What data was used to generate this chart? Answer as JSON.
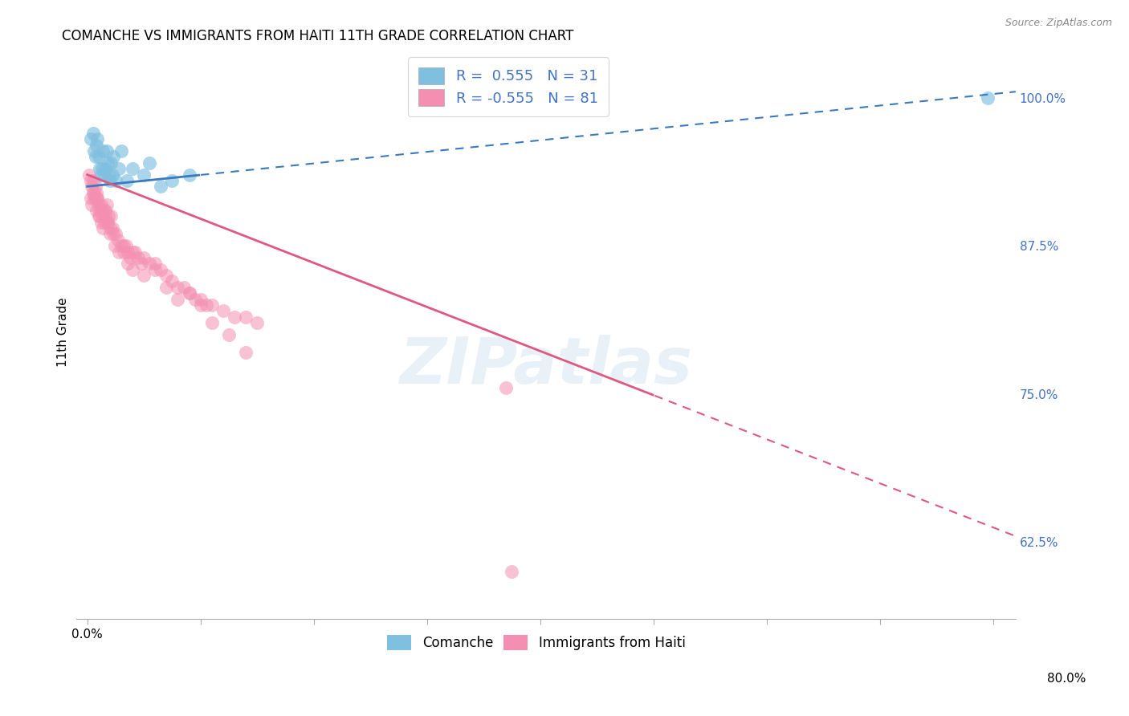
{
  "title": "COMANCHE VS IMMIGRANTS FROM HAITI 11TH GRADE CORRELATION CHART",
  "source_text": "Source: ZipAtlas.com",
  "ylabel": "11th Grade",
  "right_ytick_vals": [
    62.5,
    75.0,
    87.5,
    100.0
  ],
  "right_yticklabels": [
    "62.5%",
    "75.0%",
    "87.5%",
    "100.0%"
  ],
  "watermark": "ZIPatlas",
  "legend_line1": "R =  0.555   N = 31",
  "legend_line2": "R = -0.555   N = 81",
  "legend_labels_bottom": [
    "Comanche",
    "Immigrants from Haiti"
  ],
  "comanche_color": "#7fbfdf",
  "haiti_color": "#f48fb1",
  "comanche_line_color": "#3a7abf",
  "haiti_line_color": "#e05880",
  "comanche_x": [
    0.3,
    0.5,
    0.6,
    0.7,
    0.8,
    0.9,
    1.0,
    1.1,
    1.2,
    1.3,
    1.4,
    1.5,
    1.6,
    1.7,
    1.8,
    1.9,
    2.0,
    2.1,
    2.2,
    2.3,
    2.5,
    2.8,
    3.0,
    3.5,
    4.0,
    5.0,
    5.5,
    6.5,
    7.5,
    9.0,
    79.5
  ],
  "comanche_y": [
    96.5,
    97.0,
    95.5,
    95.0,
    96.0,
    96.5,
    95.0,
    94.0,
    93.5,
    94.0,
    95.5,
    93.5,
    94.0,
    95.5,
    94.5,
    93.5,
    93.0,
    94.5,
    93.5,
    95.0,
    93.0,
    94.0,
    95.5,
    93.0,
    94.0,
    93.5,
    94.5,
    92.5,
    93.0,
    93.5,
    100.0
  ],
  "haiti_x": [
    0.2,
    0.3,
    0.4,
    0.5,
    0.6,
    0.7,
    0.8,
    0.9,
    1.0,
    1.1,
    1.2,
    1.3,
    1.4,
    1.5,
    1.6,
    1.7,
    1.8,
    1.9,
    2.0,
    2.1,
    2.2,
    2.3,
    2.5,
    2.7,
    3.0,
    3.2,
    3.4,
    3.6,
    3.8,
    4.0,
    4.2,
    4.5,
    4.8,
    5.0,
    5.5,
    6.0,
    6.5,
    7.0,
    7.5,
    8.0,
    8.5,
    9.0,
    9.5,
    10.0,
    10.5,
    11.0,
    12.0,
    13.0,
    14.0,
    15.0,
    0.3,
    0.4,
    0.5,
    0.6,
    0.8,
    1.0,
    1.2,
    1.4,
    1.6,
    1.8,
    2.0,
    2.4,
    2.8,
    3.2,
    3.6,
    4.0,
    5.0,
    6.0,
    7.0,
    8.0,
    9.0,
    10.0,
    11.0,
    12.5,
    14.0,
    0.7,
    0.9,
    1.1,
    1.5,
    37.0,
    37.5
  ],
  "haiti_y": [
    93.5,
    93.0,
    92.5,
    93.0,
    92.0,
    91.5,
    92.0,
    91.5,
    91.0,
    90.5,
    91.0,
    90.5,
    90.0,
    89.5,
    90.0,
    91.0,
    89.5,
    90.0,
    89.0,
    90.0,
    89.0,
    88.5,
    88.5,
    88.0,
    87.5,
    87.0,
    87.5,
    87.0,
    86.5,
    87.0,
    87.0,
    86.5,
    86.0,
    86.5,
    86.0,
    85.5,
    85.5,
    85.0,
    84.5,
    84.0,
    84.0,
    83.5,
    83.0,
    83.0,
    82.5,
    82.5,
    82.0,
    81.5,
    81.5,
    81.0,
    91.5,
    91.0,
    92.0,
    91.5,
    90.5,
    90.0,
    89.5,
    89.0,
    90.5,
    89.5,
    88.5,
    87.5,
    87.0,
    87.5,
    86.0,
    85.5,
    85.0,
    86.0,
    84.0,
    83.0,
    83.5,
    82.5,
    81.0,
    80.0,
    78.5,
    92.5,
    91.5,
    90.0,
    90.5,
    75.5,
    60.0
  ],
  "xlim": [
    -1.0,
    82.0
  ],
  "ylim": [
    56.0,
    104.5
  ],
  "blue_trend_x0": 0.0,
  "blue_trend_y0": 92.5,
  "blue_trend_x1": 82.0,
  "blue_trend_y1": 100.5,
  "pink_trend_x0": 0.0,
  "pink_trend_y0": 93.5,
  "pink_trend_x1": 82.0,
  "pink_trend_y1": 63.0,
  "blue_solid_end": 10.0,
  "pink_solid_end": 50.0
}
